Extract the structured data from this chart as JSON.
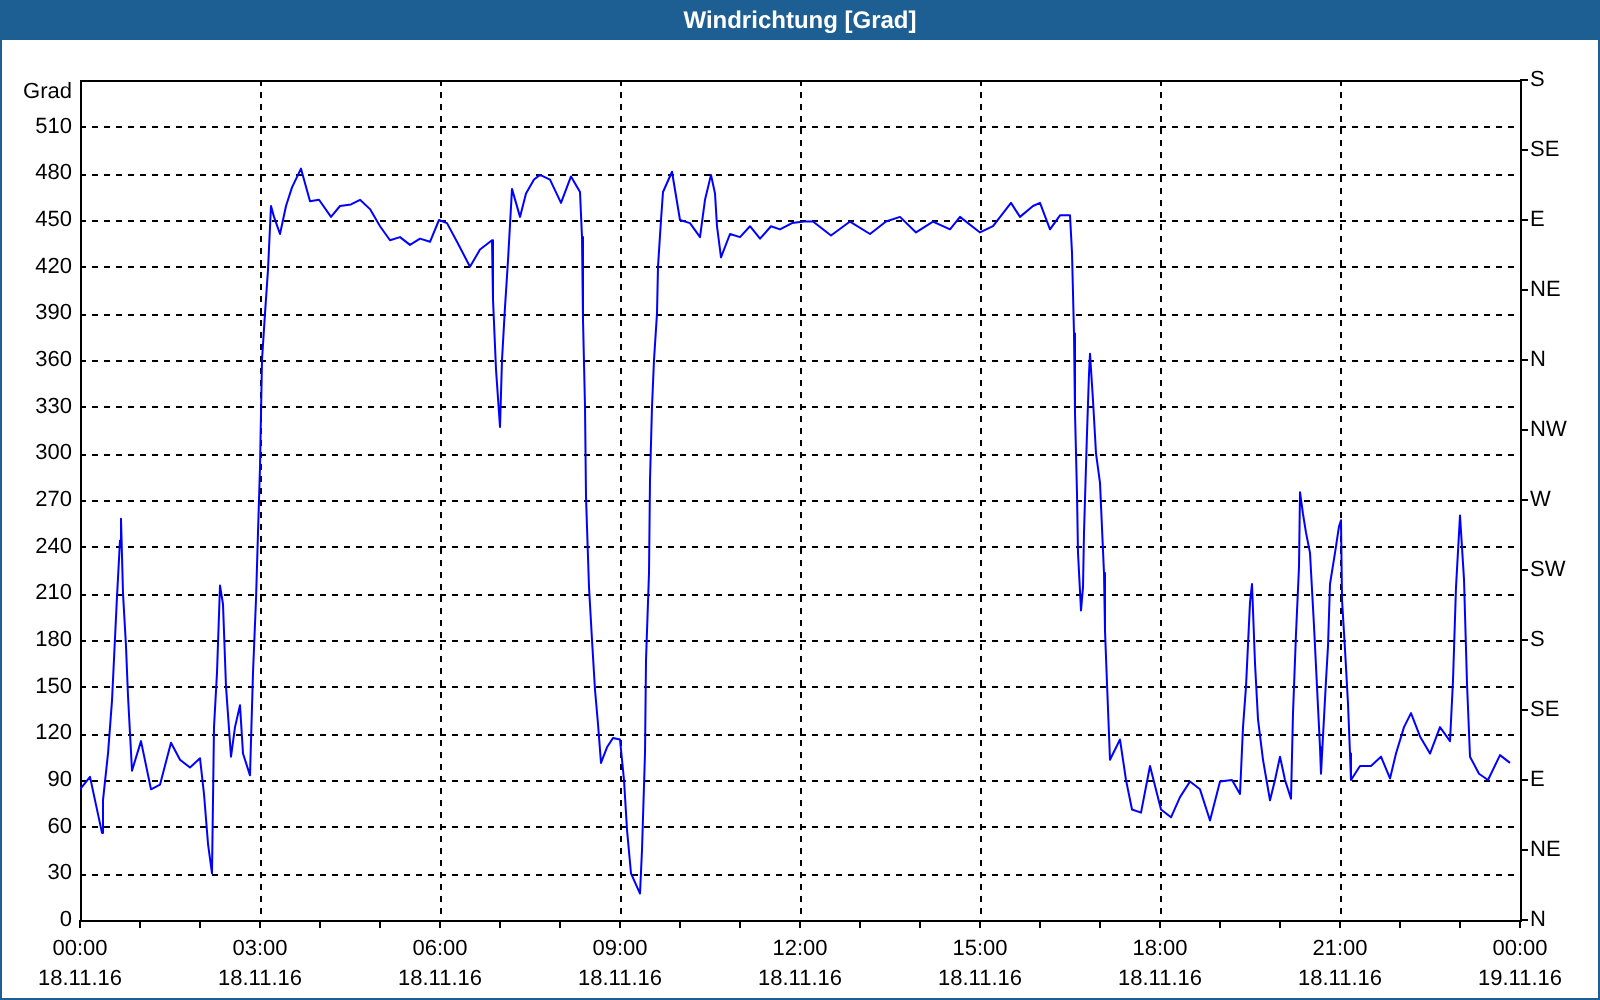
{
  "chart_data": {
    "type": "line",
    "title": "Windrichtung [Grad]",
    "ylabel": "Grad",
    "x": [
      "--11-18T00:00",
      "--11-18T00:10",
      "--11-18T00:22",
      "--11-18T00:23",
      "--11-18T00:28",
      "--11-18T00:32",
      "--11-18T00:37",
      "--11-18T00:40",
      "--11-18T00:41",
      "--11-18T00:43",
      "--11-18T00:46",
      "--11-18T00:48",
      "--11-18T00:52",
      "--11-18T01:01",
      "--11-18T01:11",
      "--11-18T01:20",
      "--11-18T01:31",
      "--11-18T01:40",
      "--11-18T01:50",
      "--11-18T02:00",
      "--11-18T02:04",
      "--11-18T02:08",
      "--11-18T02:12",
      "--11-18T02:14",
      "--11-18T02:17",
      "--11-18T02:20",
      "--11-18T02:23",
      "--11-18T02:26",
      "--11-18T02:31",
      "--11-18T02:35",
      "--11-18T02:40",
      "--11-18T02:43",
      "--11-18T02:50",
      "--11-18T02:53",
      "--11-18T02:56",
      "--11-18T02:58",
      "--11-18T03:00",
      "--11-18T03:02",
      "--11-18T03:05",
      "--11-18T03:08",
      "--11-18T03:11",
      "--11-18T03:14",
      "--11-18T03:20",
      "--11-18T03:26",
      "--11-18T03:32",
      "--11-18T03:41",
      "--11-18T03:50",
      "--11-18T03:59",
      "--11-18T04:11",
      "--11-18T04:20",
      "--11-18T04:31",
      "--11-18T04:40",
      "--11-18T04:50",
      "--11-18T05:00",
      "--11-18T05:10",
      "--11-18T05:20",
      "--11-18T05:30",
      "--11-18T05:40",
      "--11-18T05:50",
      "--11-18T05:59",
      "--11-18T06:07",
      "--11-18T06:17",
      "--11-18T06:30",
      "--11-18T06:40",
      "--11-18T06:52",
      "--11-18T06:53",
      "--11-18T06:56",
      "--11-18T07:00",
      "--11-18T07:02",
      "--11-18T07:05",
      "--11-18T07:08",
      "--11-18T07:12",
      "--11-18T07:20",
      "--11-18T07:26",
      "--11-18T07:34",
      "--11-18T07:40",
      "--11-18T07:50",
      "--11-18T08:01",
      "--11-18T08:11",
      "--11-18T08:20",
      "--11-18T08:22",
      "--11-18T08:23",
      "--11-18T08:25",
      "--11-18T08:26",
      "--11-18T08:29",
      "--11-18T08:32",
      "--11-18T08:35",
      "--11-18T08:38",
      "--11-18T08:41",
      "--11-18T08:47",
      "--11-18T08:53",
      "--11-18T09:00",
      "--11-18T09:04",
      "--11-18T09:07",
      "--11-18T09:11",
      "--11-18T09:20",
      "--11-18T09:22",
      "--11-18T09:25",
      "--11-18T09:26",
      "--11-18T09:29",
      "--11-18T09:30",
      "--11-18T09:32",
      "--11-18T09:34",
      "--11-18T09:37",
      "--11-18T09:38",
      "--11-18T09:41",
      "--11-18T09:43",
      "--11-18T09:52",
      "--11-18T10:00",
      "--11-18T10:10",
      "--11-18T10:20",
      "--11-18T10:25",
      "--11-18T10:31",
      "--11-18T10:35",
      "--11-18T10:37",
      "--11-18T10:41",
      "--11-18T10:50",
      "--11-18T11:00",
      "--11-18T11:10",
      "--11-18T11:20",
      "--11-18T11:31",
      "--11-18T11:40",
      "--11-18T11:52",
      "--11-18T12:04",
      "--11-18T12:13",
      "--11-18T12:31",
      "--11-18T12:50",
      "--11-18T13:10",
      "--11-18T13:26",
      "--11-18T13:40",
      "--11-18T13:56",
      "--11-18T14:13",
      "--11-18T14:30",
      "--11-18T14:40",
      "--11-18T15:00",
      "--11-18T15:13",
      "--11-18T15:31",
      "--11-18T15:40",
      "--11-18T15:53",
      "--11-18T16:00",
      "--11-18T16:10",
      "--11-18T16:20",
      "--11-18T16:30",
      "--11-18T16:32",
      "--11-18T16:34",
      "--11-18T16:35",
      "--11-18T16:37",
      "--11-18T16:38",
      "--11-18T16:41",
      "--11-18T16:43",
      "--11-18T16:44",
      "--11-18T16:47",
      "--11-18T16:49",
      "--11-18T16:50",
      "--11-18T16:53",
      "--11-18T16:56",
      "--11-18T17:00",
      "--11-18T17:04",
      "--11-18T17:05",
      "--11-18T17:07",
      "--11-18T17:10",
      "--11-18T17:20",
      "--11-18T17:26",
      "--11-18T17:32",
      "--11-18T17:41",
      "--11-18T17:50",
      "--11-18T18:01",
      "--11-18T18:11",
      "--11-18T18:20",
      "--11-18T18:30",
      "--11-18T18:40",
      "--11-18T18:50",
      "--11-18T19:00",
      "--11-18T19:12",
      "--11-18T19:20",
      "--11-18T19:23",
      "--11-18T19:26",
      "--11-18T19:30",
      "--11-18T19:32",
      "--11-18T19:35",
      "--11-18T19:38",
      "--11-18T19:43",
      "--11-18T19:50",
      "--11-18T19:55",
      "--11-18T20:00",
      "--11-18T20:05",
      "--11-18T20:11",
      "--11-18T20:13",
      "--11-18T20:16",
      "--11-18T20:19",
      "--11-18T20:20",
      "--11-18T20:23",
      "--11-18T20:26",
      "--11-18T20:30",
      "--11-18T20:34",
      "--11-18T20:37",
      "--11-18T20:40",
      "--11-18T20:41",
      "--11-18T20:46",
      "--11-18T20:48",
      "--11-18T20:50",
      "--11-18T20:55",
      "--11-18T20:59",
      "--11-18T21:01",
      "--11-18T21:02",
      "--11-18T21:05",
      "--11-18T21:08",
      "--11-18T21:10",
      "--11-18T21:11",
      "--11-18T21:20",
      "--11-18T21:31",
      "--11-18T21:41",
      "--11-18T21:50",
      "--11-18T21:56",
      "--11-18T22:04",
      "--11-18T22:11",
      "--11-18T22:20",
      "--11-18T22:30",
      "--11-18T22:40",
      "--11-18T22:50",
      "--11-18T22:53",
      "--11-18T22:56",
      "--11-18T23:00",
      "--11-18T23:04",
      "--11-18T23:07",
      "--11-18T23:10",
      "--11-18T23:19",
      "--11-18T23:28",
      "--11-18T23:40",
      "--11-18T23:50"
    ],
    "series": [
      {
        "color": "#0000ff",
        "values": [
          84,
          92,
          56,
          77,
          107,
          141,
          208,
          244,
          258,
          210,
          176,
          144,
          96,
          115,
          84,
          87,
          114,
          103,
          98,
          104,
          81,
          49,
          30,
          124,
          159,
          215,
          203,
          150,
          105,
          124,
          138,
          107,
          93,
          159,
          206,
          249,
          291,
          360,
          390,
          418,
          459,
          452,
          441,
          459,
          471,
          483,
          462,
          463,
          452,
          459,
          460,
          463,
          457,
          446,
          437,
          439,
          434,
          438,
          436,
          450,
          448,
          436,
          420,
          431,
          437,
          399,
          354,
          317,
          360,
          394,
          424,
          470,
          452,
          467,
          476,
          479,
          476,
          461,
          478,
          468,
          439,
          386,
          330,
          272,
          214,
          180,
          148,
          126,
          101,
          111,
          117,
          116,
          90,
          58,
          30,
          17,
          45,
          107,
          167,
          223,
          283,
          330,
          360,
          390,
          420,
          450,
          468,
          481,
          450,
          448,
          439,
          463,
          479,
          467,
          446,
          426,
          441,
          439,
          446,
          438,
          446,
          444,
          448,
          449,
          449,
          440,
          449,
          441,
          449,
          452,
          442,
          449,
          444,
          452,
          442,
          446,
          461,
          452,
          459,
          461,
          444,
          453,
          453,
          429,
          377,
          326,
          274,
          236,
          199,
          214,
          249,
          313,
          351,
          364,
          334,
          300,
          281,
          223,
          186,
          152,
          103,
          116,
          90,
          71,
          69,
          99,
          71,
          66,
          79,
          89,
          84,
          64,
          89,
          90,
          81,
          124,
          150,
          204,
          216,
          165,
          129,
          103,
          77,
          90,
          105,
          90,
          78,
          133,
          184,
          227,
          275,
          261,
          249,
          236,
          189,
          150,
          111,
          94,
          154,
          176,
          216,
          236,
          253,
          257,
          206,
          174,
          139,
          107,
          90,
          99,
          99,
          105,
          91,
          107,
          124,
          133,
          118,
          107,
          124,
          115,
          154,
          214,
          260,
          219,
          152,
          105,
          94,
          90,
          106,
          101
        ]
      }
    ],
    "xlim": [
      "--11-18T00:00",
      "--11-19T00:00"
    ],
    "xticks": [
      {
        "value": "--11-18T00:00",
        "label": "00:00\n18.11.16"
      },
      {
        "value": "--11-18T01:00",
        "label": null
      },
      {
        "value": "--11-18T02:00",
        "label": null
      },
      {
        "value": "--11-18T03:00",
        "label": "03:00\n18.11.16"
      },
      {
        "value": "--11-18T04:00",
        "label": null
      },
      {
        "value": "--11-18T05:00",
        "label": null
      },
      {
        "value": "--11-18T06:00",
        "label": "06:00\n18.11.16"
      },
      {
        "value": "--11-18T07:00",
        "label": null
      },
      {
        "value": "--11-18T08:00",
        "label": null
      },
      {
        "value": "--11-18T09:00",
        "label": "09:00\n18.11.16"
      },
      {
        "value": "--11-18T10:00",
        "label": null
      },
      {
        "value": "--11-18T11:00",
        "label": null
      },
      {
        "value": "--11-18T12:00",
        "label": "12:00\n18.11.16"
      },
      {
        "value": "--11-18T13:00",
        "label": null
      },
      {
        "value": "--11-18T14:00",
        "label": null
      },
      {
        "value": "--11-18T15:00",
        "label": "15:00\n18.11.16"
      },
      {
        "value": "--11-18T16:00",
        "label": null
      },
      {
        "value": "--11-18T17:00",
        "label": null
      },
      {
        "value": "--11-18T18:00",
        "label": "18:00\n18.11.16"
      },
      {
        "value": "--11-18T19:00",
        "label": null
      },
      {
        "value": "--11-18T20:00",
        "label": null
      },
      {
        "value": "--11-18T21:00",
        "label": "21:00\n18.11.16"
      },
      {
        "value": "--11-18T22:00",
        "label": null
      },
      {
        "value": "--11-18T23:00",
        "label": null
      },
      {
        "value": "--11-19T00:00",
        "label": "00:00\n19.11.16"
      }
    ],
    "ylim": [
      0,
      540
    ],
    "yticks": [
      0,
      30,
      60,
      90,
      120,
      150,
      180,
      210,
      240,
      270,
      300,
      330,
      360,
      390,
      420,
      450,
      480,
      510
    ],
    "y2_categories": [
      "S",
      "SE",
      "E",
      "NE",
      "N",
      "NW",
      "W",
      "SW",
      "S",
      "SE",
      "E",
      "NE",
      "N"
    ],
    "grid": true,
    "marker": "none",
    "line_style": "solid"
  }
}
